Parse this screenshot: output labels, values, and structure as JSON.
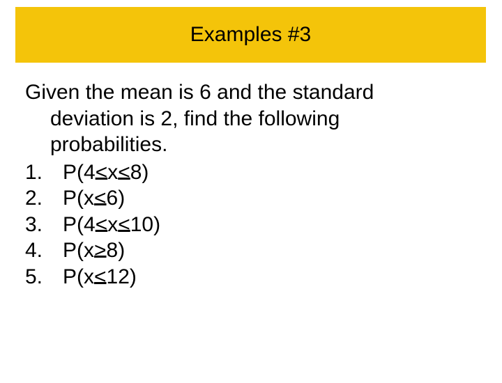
{
  "header": {
    "title": "Examples #3",
    "bg_color": "#f4c40a",
    "title_fontsize": 30,
    "title_font": "Comic Sans MS"
  },
  "content": {
    "intro_line1": "Given the mean is 6 and the standard",
    "intro_line2": "deviation is 2, find the following",
    "intro_line3": "probabilities.",
    "body_fontsize": 30,
    "body_font": "Arial",
    "items": [
      {
        "num": "1.",
        "text": "P(4<x<8)"
      },
      {
        "num": "2.",
        "text": "P(x<6)"
      },
      {
        "num": "3.",
        "text": "P(4<x<10)"
      },
      {
        "num": "4.",
        "text": "P(x>8)"
      },
      {
        "num": "5.",
        "text": "P(x<12)"
      }
    ]
  },
  "colors": {
    "background": "#ffffff",
    "text": "#000000"
  }
}
